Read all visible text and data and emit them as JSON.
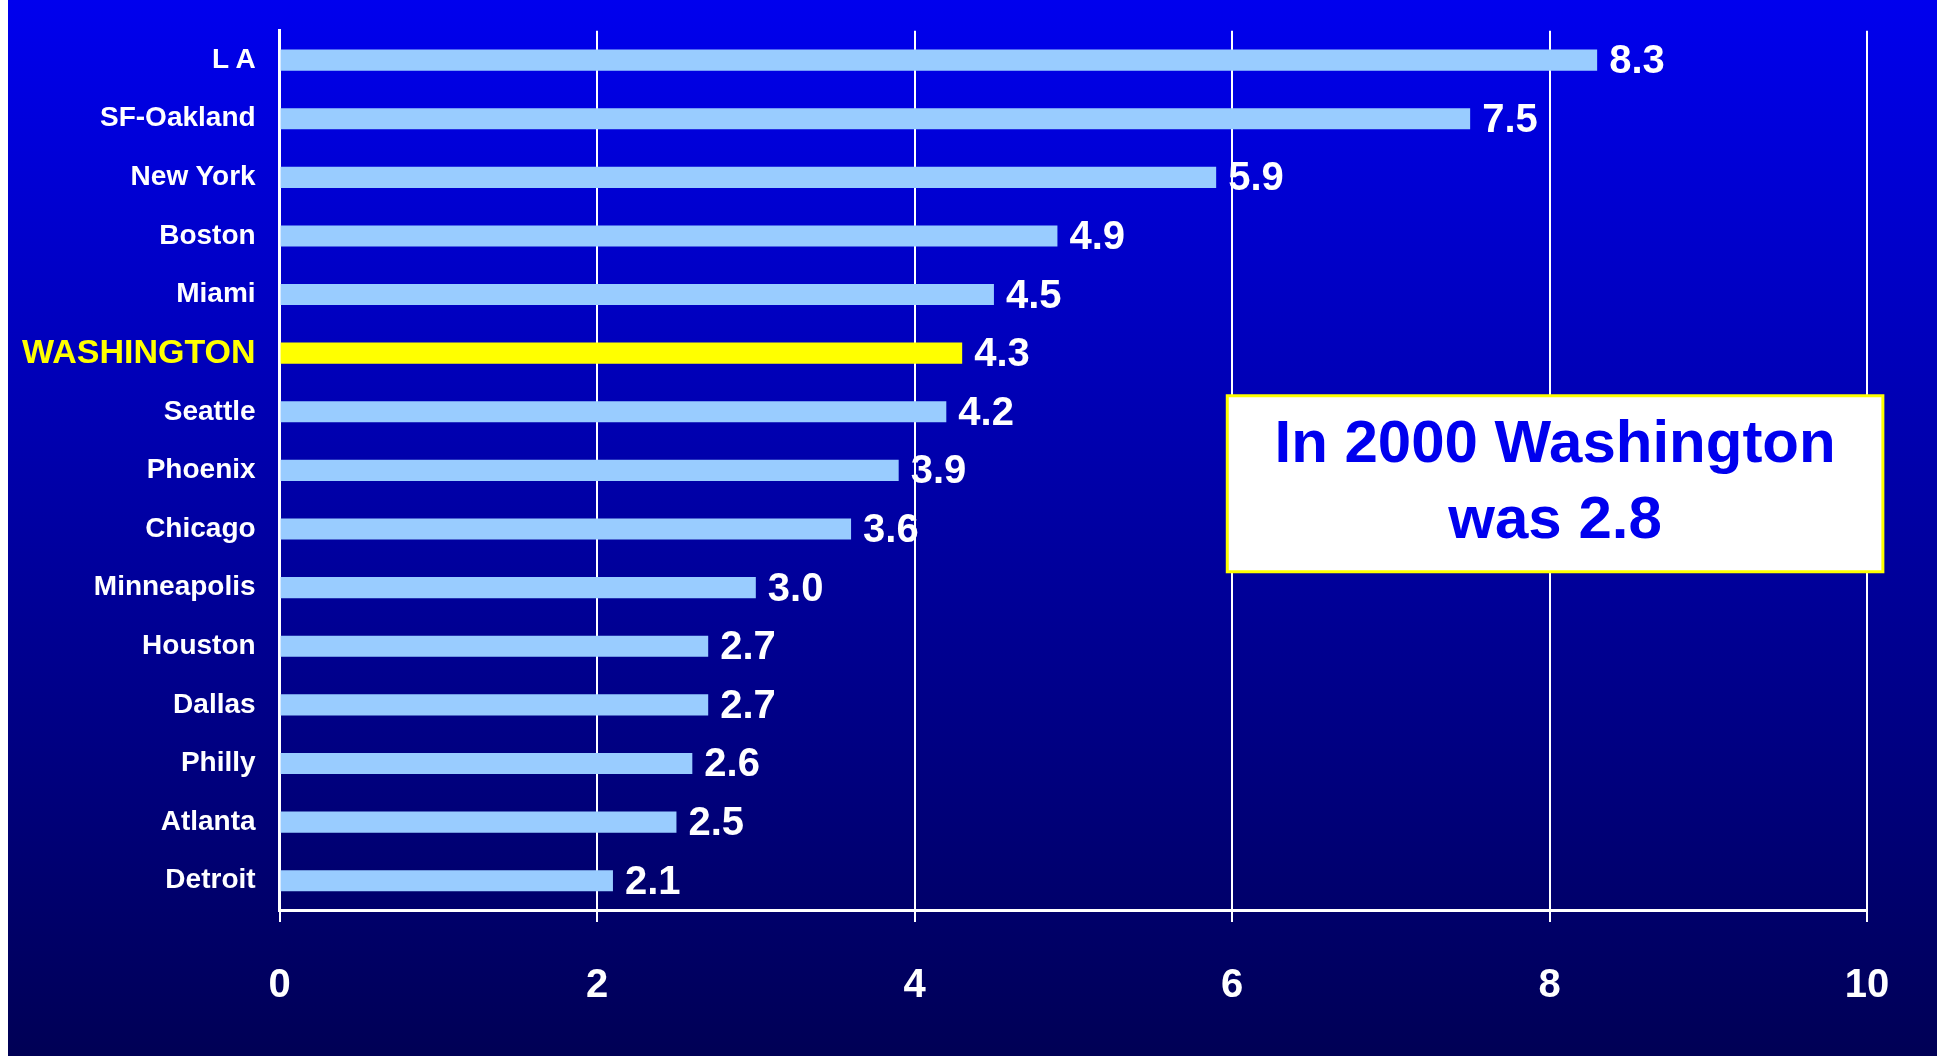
{
  "chart_data": {
    "type": "bar",
    "orientation": "horizontal",
    "categories": [
      "L A",
      "SF-Oakland",
      "New York",
      "Boston",
      "Miami",
      "WASHINGTON",
      "Seattle",
      "Phoenix",
      "Chicago",
      "Minneapolis",
      "Houston",
      "Dallas",
      "Philly",
      "Atlanta",
      "Detroit"
    ],
    "values": [
      8.3,
      7.5,
      5.9,
      4.9,
      4.5,
      4.3,
      4.2,
      3.9,
      3.6,
      3.0,
      2.7,
      2.7,
      2.6,
      2.5,
      2.1
    ],
    "value_labels": [
      "8.3",
      "7.5",
      "5.9",
      "4.9",
      "4.5",
      "4.3",
      "4.2",
      "3.9",
      "3.6",
      "3.0",
      "2.7",
      "2.7",
      "2.6",
      "2.5",
      "2.1"
    ],
    "colors": [
      "#99ccff",
      "#99ccff",
      "#99ccff",
      "#99ccff",
      "#99ccff",
      "#ffff00",
      "#99ccff",
      "#99ccff",
      "#99ccff",
      "#99ccff",
      "#99ccff",
      "#99ccff",
      "#99ccff",
      "#99ccff",
      "#99ccff"
    ],
    "xlim": [
      0,
      10
    ],
    "xticks": [
      0,
      2,
      4,
      6,
      8,
      10
    ],
    "grid": "x",
    "legend": false,
    "annotations": [
      "In 2000 Washington was 2.8"
    ]
  }
}
